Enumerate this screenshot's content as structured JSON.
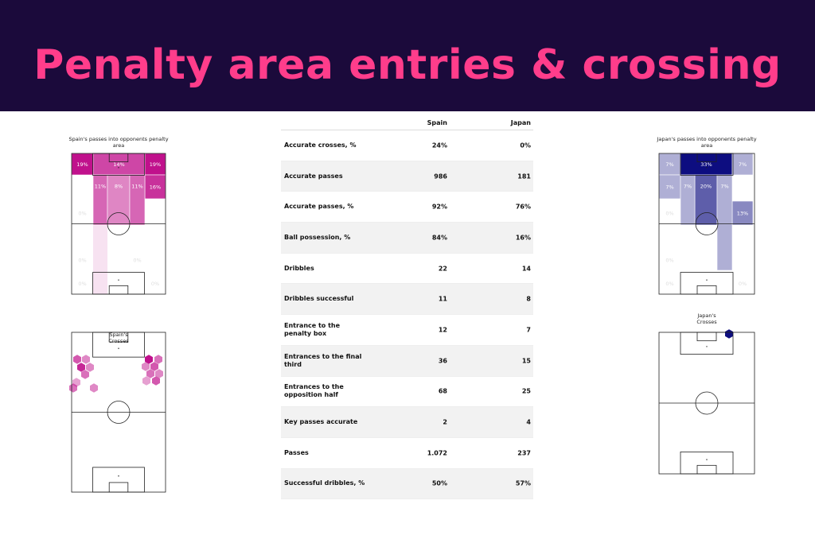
{
  "header": {
    "title": "Penalty area entries & crossing"
  },
  "panels": [
    {
      "title": "Spain's passes into opponents penalty area",
      "color": "#c0118c",
      "cells": [
        {
          "value": 19,
          "label": "19%"
        },
        {
          "value": 14,
          "label": "14%"
        },
        {
          "value": 19,
          "label": "19%"
        },
        {
          "value": 16,
          "label": "16%"
        },
        {
          "value": 11,
          "label": "11%"
        },
        {
          "value": 8,
          "label": "8%"
        },
        {
          "value": 11,
          "label": "11%"
        },
        {
          "value": 0,
          "label": "0%"
        },
        {
          "value": 0,
          "label": "0%"
        },
        {
          "value": 0,
          "label": "0%"
        },
        {
          "value": 0,
          "label": "0%"
        },
        {
          "value": 0,
          "label": "0%"
        }
      ]
    },
    {
      "title": "Spain's Crosses"
    },
    {
      "title": "Japan's passes into opponents penalty area",
      "color": "#0d0d80",
      "cells": [
        {
          "value": 33,
          "label": "33%"
        },
        {
          "value": 7,
          "label": "7%"
        },
        {
          "value": 7,
          "label": "7%"
        },
        {
          "value": 7,
          "label": "7%"
        },
        {
          "value": 20,
          "label": "20%"
        },
        {
          "value": 13,
          "label": "13%"
        },
        {
          "value": 7,
          "label": "7%"
        },
        {
          "value": 7,
          "label": "7%"
        },
        {
          "value": 0,
          "label": "0%"
        },
        {
          "value": 0,
          "label": "0%"
        },
        {
          "value": 0,
          "label": "0%"
        },
        {
          "value": 0,
          "label": "0%"
        }
      ]
    },
    {
      "title": "Japan's Crosses"
    }
  ],
  "table": {
    "columns": [
      "Spain",
      "Japan"
    ],
    "rows": [
      [
        "Accurate crosses, %",
        "24%",
        "0%"
      ],
      [
        "Accurate passes",
        "986",
        "181"
      ],
      [
        "Accurate passes, %",
        "92%",
        "76%"
      ],
      [
        "Ball possession, %",
        "84%",
        "16%"
      ],
      [
        "Dribbles",
        "22",
        "14"
      ],
      [
        "Dribbles successful",
        "11",
        "8"
      ],
      [
        "Entrance to the penalty box",
        "12",
        "7"
      ],
      [
        "Entrances to the final third",
        "36",
        "15"
      ],
      [
        "Entrances to the opposition half",
        "68",
        "25"
      ],
      [
        "Key passes accurate",
        "2",
        "4"
      ],
      [
        "Passes",
        "1.072",
        "237"
      ],
      [
        "Successful dribbles, %",
        "50%",
        "57%"
      ]
    ]
  }
}
